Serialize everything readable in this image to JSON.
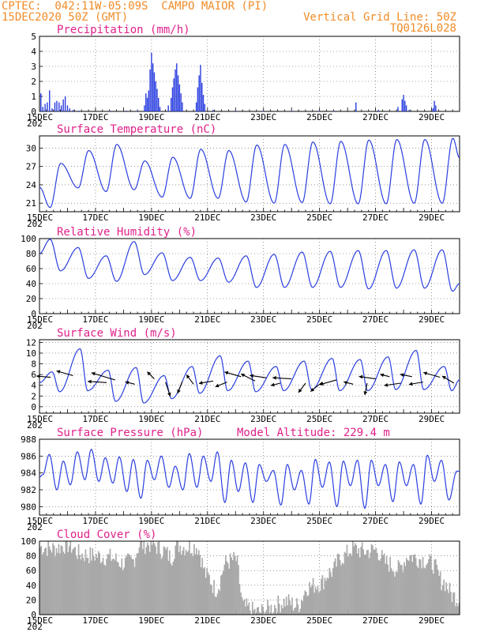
{
  "header": {
    "line1": "CPTEC:  042:11W-05:09S  CAMPO MAIOR (PI)",
    "line2": "15DEC2020 50Z (GMT)",
    "grid_note": "Vertical Grid Line: 50Z",
    "model_id": "TQ0126L028"
  },
  "colors": {
    "line": "#2b3fe0",
    "title": "#e0208a",
    "header": "#f08c28",
    "cloud": "#a8a8a8",
    "arrow": "#000000"
  },
  "x_tick_labels": [
    "15DEC",
    "17DEC",
    "19DEC",
    "21DEC",
    "23DEC",
    "25DEC",
    "27DEC",
    "29DEC"
  ],
  "x_axis_cut_label": "202",
  "chart_data": [
    {
      "id": "precip",
      "type": "bar",
      "title": "Precipitation (mm/h)",
      "ylim": [
        0,
        5
      ],
      "yticks": [
        0,
        1,
        2,
        3,
        4,
        5
      ],
      "x_unit": "days since 15DEC 00Z",
      "xlim": [
        0,
        15
      ],
      "values": [
        [
          0.05,
          1.2
        ],
        [
          0.12,
          0.3
        ],
        [
          0.2,
          0.5
        ],
        [
          0.28,
          0.6
        ],
        [
          0.36,
          1.4
        ],
        [
          0.45,
          0.2
        ],
        [
          0.55,
          0.6
        ],
        [
          0.62,
          0.7
        ],
        [
          0.7,
          0.6
        ],
        [
          0.78,
          0.4
        ],
        [
          0.85,
          0.8
        ],
        [
          0.92,
          1.0
        ],
        [
          1.0,
          0.4
        ],
        [
          1.08,
          0.2
        ],
        [
          1.2,
          0.1
        ],
        [
          1.4,
          0.05
        ],
        [
          2.5,
          0.05
        ],
        [
          3.1,
          0.05
        ],
        [
          3.5,
          0.05
        ],
        [
          3.75,
          0.4
        ],
        [
          3.8,
          1.2
        ],
        [
          3.85,
          0.9
        ],
        [
          3.9,
          1.4
        ],
        [
          3.95,
          2.8
        ],
        [
          4.0,
          3.9
        ],
        [
          4.05,
          3.2
        ],
        [
          4.1,
          2.6
        ],
        [
          4.15,
          2.0
        ],
        [
          4.2,
          1.5
        ],
        [
          4.25,
          0.9
        ],
        [
          4.3,
          0.3
        ],
        [
          4.6,
          0.4
        ],
        [
          4.7,
          0.9
        ],
        [
          4.75,
          1.6
        ],
        [
          4.8,
          2.2
        ],
        [
          4.85,
          2.8
        ],
        [
          4.9,
          3.2
        ],
        [
          4.95,
          2.4
        ],
        [
          5.0,
          1.8
        ],
        [
          5.05,
          1.2
        ],
        [
          5.1,
          0.6
        ],
        [
          5.6,
          0.6
        ],
        [
          5.65,
          1.6
        ],
        [
          5.7,
          2.4
        ],
        [
          5.75,
          3.1
        ],
        [
          5.8,
          1.9
        ],
        [
          5.85,
          1.1
        ],
        [
          5.9,
          0.5
        ],
        [
          6.2,
          0.1
        ],
        [
          7.0,
          0.05
        ],
        [
          8.0,
          0.05
        ],
        [
          9.0,
          0.05
        ],
        [
          10.0,
          0.05
        ],
        [
          10.5,
          0.05
        ],
        [
          11.3,
          0.6
        ],
        [
          12.1,
          0.1
        ],
        [
          12.8,
          0.3
        ],
        [
          12.95,
          0.8
        ],
        [
          13.0,
          1.1
        ],
        [
          13.05,
          0.7
        ],
        [
          13.1,
          0.4
        ],
        [
          13.2,
          0.1
        ],
        [
          14.05,
          0.2
        ],
        [
          14.1,
          0.7
        ],
        [
          14.15,
          0.4
        ]
      ]
    },
    {
      "id": "temp",
      "type": "line",
      "title": "Surface Temperature (nC)",
      "ylim": [
        19.6,
        32
      ],
      "yticks": [
        21,
        24,
        27,
        30
      ],
      "x_unit": "days since 15DEC 00Z",
      "xlim": [
        0,
        15
      ],
      "min_t": 0.38,
      "max_t": 0.76,
      "mins": [
        20.3,
        23.5,
        22.9,
        23.2,
        22.0,
        21.8,
        21.8,
        21.2,
        21.0,
        21.1,
        20.9,
        20.9,
        20.9,
        21.0,
        21.0
      ],
      "maxs": [
        27.5,
        29.6,
        30.6,
        27.9,
        28.5,
        29.8,
        29.6,
        30.5,
        30.6,
        31.0,
        31.1,
        31.3,
        31.4,
        31.4,
        31.6
      ],
      "start": 23.6,
      "end": 28.4
    },
    {
      "id": "rh",
      "type": "line",
      "title": "Relative Humidity (%)",
      "ylim": [
        0,
        100
      ],
      "yticks": [
        0,
        20,
        40,
        60,
        80,
        100
      ],
      "x_unit": "days since 15DEC 00Z",
      "xlim": [
        0,
        15
      ],
      "min_t": 0.75,
      "max_t": 0.38,
      "mins": [
        57,
        47,
        43,
        52,
        44,
        44,
        42,
        35,
        35,
        35,
        35,
        33,
        34,
        34,
        30
      ],
      "maxs": [
        99,
        88,
        77,
        96,
        81,
        75,
        74,
        77,
        79,
        82,
        83,
        84,
        84,
        85,
        85
      ],
      "start": 80,
      "end": 40
    },
    {
      "id": "wind",
      "type": "line",
      "title": "Surface Wind (m/s)",
      "ylim": [
        -1.2,
        12.5
      ],
      "yticks": [
        0,
        2,
        4,
        6,
        8,
        10,
        12
      ],
      "x_unit": "days since 15DEC 00Z",
      "xlim": [
        0,
        15
      ],
      "min_t": 0.72,
      "max_t": 0.45,
      "mins": [
        2.8,
        3.0,
        1.0,
        0.7,
        1.5,
        2.5,
        3.0,
        2.8,
        3.0,
        3.2,
        3.0,
        3.0,
        3.2,
        3.2,
        3.0
      ],
      "maxs": [
        6.5,
        10.8,
        6.8,
        7.3,
        5.8,
        7.5,
        9.5,
        8.5,
        7.5,
        8.5,
        9.0,
        8.8,
        9.3,
        10.5,
        7.5
      ],
      "start": 4.5,
      "end": 5.0,
      "arrows": [
        [
          0.4,
          5.5,
          -0.6,
          0.05
        ],
        [
          1.2,
          5.8,
          -0.7,
          0.2
        ],
        [
          2.4,
          4.5,
          -0.8,
          0.05
        ],
        [
          2.7,
          5.0,
          -1.0,
          0.3
        ],
        [
          3.4,
          4.2,
          -0.4,
          0.1
        ],
        [
          4.1,
          5.2,
          -0.3,
          0.3
        ],
        [
          4.5,
          4.6,
          0.2,
          -0.6
        ],
        [
          5.1,
          4.7,
          -0.2,
          -0.5
        ],
        [
          5.5,
          4.2,
          -0.3,
          0.4
        ],
        [
          6.2,
          4.8,
          -0.6,
          -0.1
        ],
        [
          6.7,
          4.6,
          -0.5,
          -0.2
        ],
        [
          7.2,
          5.6,
          -0.7,
          0.2
        ],
        [
          7.7,
          4.8,
          -0.6,
          0.3
        ],
        [
          8.1,
          5.4,
          -0.7,
          0.1
        ],
        [
          8.6,
          4.4,
          -0.4,
          -0.1
        ],
        [
          9.0,
          5.2,
          -0.8,
          0.05
        ],
        [
          9.5,
          4.4,
          -0.3,
          -0.4
        ],
        [
          10.1,
          4.6,
          -0.5,
          -0.4
        ],
        [
          10.6,
          5.0,
          -0.7,
          -0.2
        ],
        [
          11.2,
          4.2,
          -0.4,
          0.1
        ],
        [
          11.7,
          4.4,
          -0.1,
          -0.5
        ],
        [
          12.0,
          5.2,
          -0.7,
          0.1
        ],
        [
          12.5,
          5.6,
          -0.4,
          0.1
        ],
        [
          12.9,
          4.4,
          -0.7,
          -0.1
        ],
        [
          13.3,
          5.6,
          -0.5,
          0.1
        ],
        [
          13.7,
          4.6,
          -0.6,
          -0.1
        ],
        [
          14.3,
          5.5,
          -0.7,
          0.2
        ],
        [
          14.8,
          4.4,
          -0.5,
          0.3
        ]
      ]
    },
    {
      "id": "pres",
      "type": "line",
      "title": "Surface Pressure (hPa)",
      "subtitle": "Model Altitude: 229.4 m",
      "ylim": [
        979,
        988
      ],
      "yticks": [
        980,
        982,
        984,
        986,
        988
      ],
      "x_unit": "days since 15DEC 00Z",
      "xlim": [
        0,
        15
      ],
      "pattern": [
        0.0,
        1.0,
        0.0,
        -1.0,
        0.0
      ],
      "peaks": [
        [
          0.12,
          983.8
        ],
        [
          0.35,
          986.2
        ],
        [
          0.62,
          982.0
        ],
        [
          0.85,
          985.4
        ],
        [
          1.1,
          982.6
        ],
        [
          1.35,
          986.5
        ],
        [
          1.62,
          983.2
        ],
        [
          1.85,
          986.8
        ],
        [
          2.12,
          983.0
        ],
        [
          2.35,
          985.8
        ],
        [
          2.62,
          982.8
        ],
        [
          2.85,
          985.9
        ],
        [
          3.12,
          981.8
        ],
        [
          3.35,
          985.6
        ],
        [
          3.62,
          981.0
        ],
        [
          3.85,
          985.5
        ],
        [
          4.1,
          983.2
        ],
        [
          4.35,
          986.0
        ],
        [
          4.62,
          982.3
        ],
        [
          4.85,
          984.8
        ],
        [
          5.12,
          982.0
        ],
        [
          5.35,
          986.3
        ],
        [
          5.62,
          982.3
        ],
        [
          5.85,
          986.0
        ],
        [
          6.12,
          983.0
        ],
        [
          6.35,
          986.5
        ],
        [
          6.62,
          980.5
        ],
        [
          6.85,
          985.5
        ],
        [
          7.1,
          981.8
        ],
        [
          7.35,
          985.2
        ],
        [
          7.62,
          980.5
        ],
        [
          7.85,
          985.0
        ],
        [
          8.1,
          983.0
        ],
        [
          8.35,
          984.3
        ],
        [
          8.62,
          980.2
        ],
        [
          8.85,
          985.0
        ],
        [
          9.1,
          982.0
        ],
        [
          9.35,
          984.3
        ],
        [
          9.62,
          980.3
        ],
        [
          9.85,
          985.6
        ],
        [
          10.1,
          982.3
        ],
        [
          10.35,
          985.3
        ],
        [
          10.62,
          980.0
        ],
        [
          10.85,
          985.4
        ],
        [
          11.1,
          982.5
        ],
        [
          11.35,
          985.5
        ],
        [
          11.62,
          979.8
        ],
        [
          11.85,
          985.5
        ],
        [
          12.1,
          982.5
        ],
        [
          12.35,
          985.0
        ],
        [
          12.62,
          980.6
        ],
        [
          12.85,
          985.3
        ],
        [
          13.1,
          982.5
        ],
        [
          13.35,
          985.0
        ],
        [
          13.62,
          980.3
        ],
        [
          13.85,
          986.1
        ],
        [
          14.1,
          983.0
        ],
        [
          14.35,
          985.5
        ],
        [
          14.62,
          980.8
        ],
        [
          14.9,
          984.2
        ]
      ]
    },
    {
      "id": "cloud",
      "type": "area",
      "title": "Cloud Cover (%)",
      "ylim": [
        0,
        100
      ],
      "yticks": [
        0,
        20,
        40,
        60,
        80,
        100
      ],
      "x_unit": "days since 15DEC 00Z",
      "xlim": [
        0,
        15
      ],
      "profile": [
        [
          0,
          92
        ],
        [
          0.5,
          90
        ],
        [
          1.0,
          95
        ],
        [
          1.5,
          82
        ],
        [
          2.0,
          80
        ],
        [
          2.5,
          78
        ],
        [
          3.0,
          70
        ],
        [
          3.3,
          72
        ],
        [
          3.6,
          95
        ],
        [
          4.0,
          96
        ],
        [
          4.4,
          88
        ],
        [
          4.7,
          78
        ],
        [
          4.9,
          95
        ],
        [
          5.2,
          92
        ],
        [
          5.6,
          93
        ],
        [
          6.0,
          52
        ],
        [
          6.3,
          35
        ],
        [
          6.7,
          72
        ],
        [
          7.0,
          75
        ],
        [
          7.3,
          10
        ],
        [
          7.8,
          3
        ],
        [
          8.2,
          8
        ],
        [
          8.5,
          14
        ],
        [
          8.8,
          18
        ],
        [
          9.2,
          12
        ],
        [
          9.6,
          38
        ],
        [
          10.0,
          42
        ],
        [
          10.4,
          58
        ],
        [
          10.8,
          78
        ],
        [
          11.2,
          90
        ],
        [
          11.6,
          86
        ],
        [
          12.0,
          88
        ],
        [
          12.4,
          70
        ],
        [
          12.8,
          62
        ],
        [
          13.2,
          80
        ],
        [
          13.6,
          76
        ],
        [
          14.0,
          70
        ],
        [
          14.4,
          45
        ],
        [
          14.8,
          25
        ],
        [
          15.0,
          20
        ]
      ]
    }
  ]
}
